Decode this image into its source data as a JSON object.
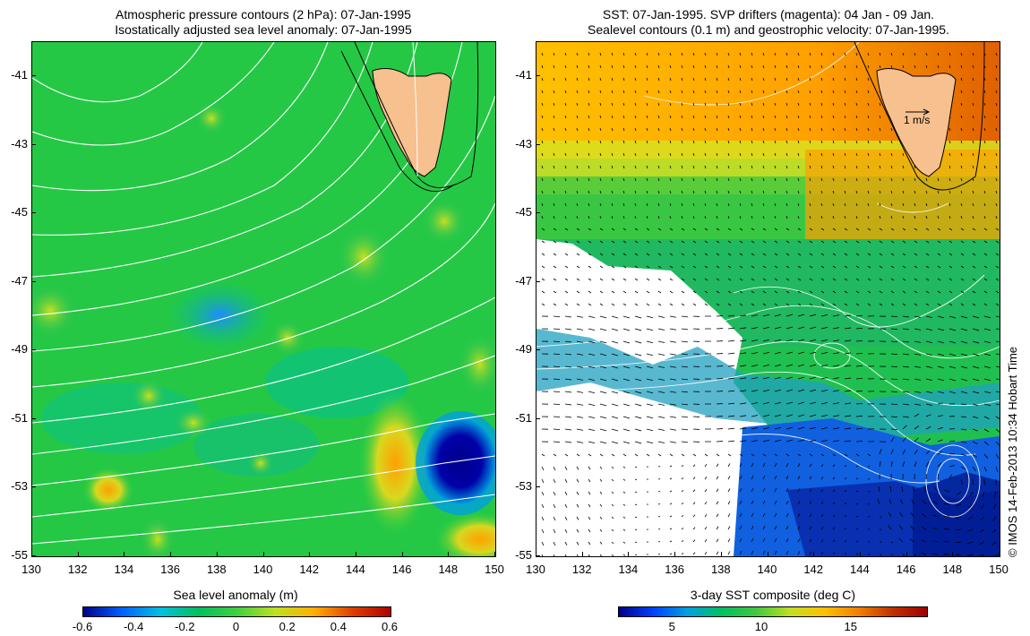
{
  "left": {
    "title_line1": "Atmospheric pressure contours (2 hPa): 07-Jan-1995",
    "title_line2": "Isostatically adjusted sea level anomaly: 07-Jan-1995",
    "x_ticks": [
      "130",
      "132",
      "134",
      "136",
      "138",
      "140",
      "142",
      "144",
      "146",
      "148",
      "150"
    ],
    "y_ticks": [
      "-41",
      "-43",
      "-45",
      "-47",
      "-49",
      "-51",
      "-53",
      "-55"
    ],
    "colorbar_label": "Sea level anomaly (m)",
    "colorbar_ticks": [
      "-0.6",
      "-0.4",
      "-0.2",
      "0",
      "0.2",
      "0.4",
      "0.6"
    ]
  },
  "right": {
    "title_line1": "SST: 07-Jan-1995. SVP drifters (magenta): 04 Jan - 09 Jan.",
    "title_line2": "Sealevel contours (0.1 m) and geostrophic velocity: 07-Jan-1995.",
    "x_ticks": [
      "130",
      "132",
      "134",
      "136",
      "138",
      "140",
      "142",
      "144",
      "146",
      "148",
      "150"
    ],
    "y_ticks": [
      "-41",
      "-43",
      "-45",
      "-47",
      "-49",
      "-51",
      "-53",
      "-55"
    ],
    "scale_label": "1 m/s",
    "colorbar_label": "3-day SST composite (deg C)",
    "colorbar_ticks": [
      "5",
      "10",
      "15"
    ]
  },
  "credit": "© IMOS 14-Feb-2013 10:34 Hobart Time",
  "colors": {
    "land": "#f7c08f",
    "sla_scale": [
      "#00008b",
      "#0060ff",
      "#00c0e0",
      "#00c060",
      "#40d040",
      "#c0e020",
      "#ffb000",
      "#e04000",
      "#b00000"
    ],
    "sst_scale": [
      "#00008b",
      "#0040ff",
      "#00a0e0",
      "#00c060",
      "#40c840",
      "#c0e020",
      "#ffc000",
      "#f08000",
      "#c03000",
      "#a00000"
    ]
  }
}
